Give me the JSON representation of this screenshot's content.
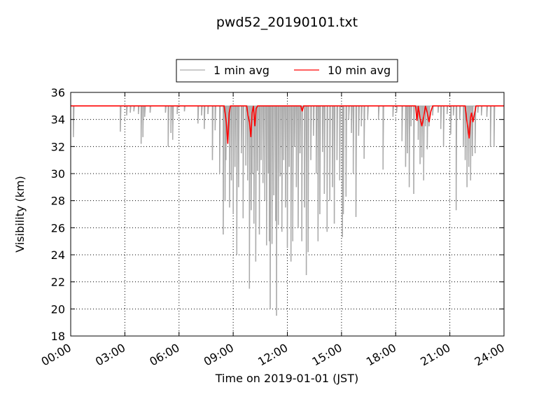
{
  "chart_data": {
    "type": "line",
    "title": "pwd52_20190101.txt",
    "xlabel": "Time on 2019-01-01 (JST)",
    "ylabel": "Visibility (km)",
    "xlim": [
      0,
      24
    ],
    "ylim": [
      18,
      36
    ],
    "x_tick_values": [
      0,
      3,
      6,
      9,
      12,
      15,
      18,
      21,
      24
    ],
    "x_tick_labels": [
      "00:00",
      "03:00",
      "06:00",
      "09:00",
      "12:00",
      "15:00",
      "18:00",
      "21:00",
      "24:00"
    ],
    "y_ticks": [
      18,
      20,
      22,
      24,
      26,
      28,
      30,
      32,
      34,
      36
    ],
    "grid": true,
    "legend_position": "top-center-outside",
    "series": [
      {
        "name": "1 min avg",
        "color": "#aaaaaa",
        "baseline": 35.0,
        "dips": [
          [
            0.15,
            32.7
          ],
          [
            2.75,
            33.1
          ],
          [
            3.1,
            34.3
          ],
          [
            3.3,
            34.5
          ],
          [
            3.5,
            34.6
          ],
          [
            3.75,
            34.4
          ],
          [
            3.9,
            32.2
          ],
          [
            4.0,
            32.7
          ],
          [
            4.1,
            34.2
          ],
          [
            4.4,
            34.5
          ],
          [
            5.25,
            34.5
          ],
          [
            5.4,
            32.0
          ],
          [
            5.55,
            33.0
          ],
          [
            5.65,
            32.5
          ],
          [
            5.9,
            34.4
          ],
          [
            6.3,
            34.6
          ],
          [
            7.05,
            33.7
          ],
          [
            7.25,
            34.3
          ],
          [
            7.4,
            33.3
          ],
          [
            7.6,
            34.4
          ],
          [
            7.85,
            31.0
          ],
          [
            8.0,
            33.2
          ],
          [
            8.25,
            30.0
          ],
          [
            8.45,
            25.5
          ],
          [
            8.55,
            28.0
          ],
          [
            8.6,
            31.0
          ],
          [
            8.7,
            32.5
          ],
          [
            8.8,
            27.5
          ],
          [
            8.9,
            29.5
          ],
          [
            9.0,
            27.0
          ],
          [
            9.1,
            30.5
          ],
          [
            9.2,
            24.0
          ],
          [
            9.3,
            29.0
          ],
          [
            9.45,
            31.5
          ],
          [
            9.55,
            26.7
          ],
          [
            9.7,
            30.6
          ],
          [
            9.8,
            29.5
          ],
          [
            9.9,
            21.5
          ],
          [
            10.0,
            27.3
          ],
          [
            10.05,
            30.0
          ],
          [
            10.15,
            26.3
          ],
          [
            10.25,
            23.5
          ],
          [
            10.35,
            30.2
          ],
          [
            10.45,
            25.5
          ],
          [
            10.55,
            31.0
          ],
          [
            10.65,
            29.3
          ],
          [
            10.75,
            28.0
          ],
          [
            10.85,
            24.7
          ],
          [
            10.95,
            30.0
          ],
          [
            11.0,
            25.0
          ],
          [
            11.05,
            20.0
          ],
          [
            11.15,
            24.8
          ],
          [
            11.25,
            28.4
          ],
          [
            11.35,
            26.5
          ],
          [
            11.4,
            19.5
          ],
          [
            11.5,
            26.2
          ],
          [
            11.6,
            29.8
          ],
          [
            11.7,
            25.7
          ],
          [
            11.8,
            31.0
          ],
          [
            11.9,
            27.5
          ],
          [
            12.0,
            24.5
          ],
          [
            12.1,
            30.5
          ],
          [
            12.2,
            23.5
          ],
          [
            12.3,
            25.0
          ],
          [
            12.4,
            32.0
          ],
          [
            12.5,
            29.0
          ],
          [
            12.6,
            26.0
          ],
          [
            12.7,
            31.5
          ],
          [
            12.8,
            25.0
          ],
          [
            12.95,
            27.5
          ],
          [
            13.05,
            22.5
          ],
          [
            13.15,
            24.2
          ],
          [
            13.3,
            31.0
          ],
          [
            13.45,
            32.8
          ],
          [
            13.6,
            30.0
          ],
          [
            13.7,
            25.0
          ],
          [
            13.8,
            27.0
          ],
          [
            13.95,
            31.6
          ],
          [
            14.05,
            28.5
          ],
          [
            14.2,
            25.7
          ],
          [
            14.35,
            28.0
          ],
          [
            14.5,
            29.0
          ],
          [
            14.6,
            26.3
          ],
          [
            14.75,
            31.0
          ],
          [
            14.9,
            29.5
          ],
          [
            15.05,
            25.3
          ],
          [
            15.1,
            27.0
          ],
          [
            15.25,
            28.3
          ],
          [
            15.4,
            34.0
          ],
          [
            15.55,
            33.0
          ],
          [
            15.65,
            30.0
          ],
          [
            15.8,
            26.8
          ],
          [
            15.95,
            32.8
          ],
          [
            16.1,
            33.5
          ],
          [
            16.25,
            31.1
          ],
          [
            16.45,
            34.0
          ],
          [
            17.05,
            34.0
          ],
          [
            17.3,
            30.3
          ],
          [
            17.85,
            34.2
          ],
          [
            18.05,
            34.5
          ],
          [
            18.35,
            32.4
          ],
          [
            18.55,
            30.5
          ],
          [
            18.65,
            31.5
          ],
          [
            18.75,
            29.0
          ],
          [
            18.85,
            33.5
          ],
          [
            19.0,
            28.5
          ],
          [
            19.15,
            34.0
          ],
          [
            19.25,
            32.5
          ],
          [
            19.35,
            30.7
          ],
          [
            19.45,
            31.2
          ],
          [
            19.55,
            29.5
          ],
          [
            19.65,
            33.5
          ],
          [
            19.75,
            31.8
          ],
          [
            19.85,
            33.5
          ],
          [
            20.05,
            34.3
          ],
          [
            20.35,
            34.5
          ],
          [
            20.5,
            33.3
          ],
          [
            20.65,
            32.0
          ],
          [
            20.85,
            34.4
          ],
          [
            21.05,
            32.9
          ],
          [
            21.2,
            34.3
          ],
          [
            21.35,
            27.3
          ],
          [
            21.55,
            34.0
          ],
          [
            21.75,
            32.0
          ],
          [
            21.85,
            31.0
          ],
          [
            21.95,
            29.0
          ],
          [
            22.05,
            30.5
          ],
          [
            22.15,
            29.5
          ],
          [
            22.25,
            31.3
          ],
          [
            22.4,
            31.5
          ],
          [
            22.55,
            34.5
          ],
          [
            22.75,
            34.3
          ],
          [
            23.05,
            34.2
          ],
          [
            23.25,
            32.0
          ],
          [
            23.45,
            32.0
          ]
        ]
      },
      {
        "name": "10 min avg",
        "color": "#ff0000",
        "points": [
          [
            0,
            35.0
          ],
          [
            8.5,
            35.0
          ],
          [
            8.62,
            33.8
          ],
          [
            8.7,
            32.2
          ],
          [
            8.78,
            34.5
          ],
          [
            8.85,
            35.0
          ],
          [
            9.75,
            35.0
          ],
          [
            9.82,
            34.3
          ],
          [
            9.9,
            33.8
          ],
          [
            9.98,
            32.7
          ],
          [
            10.05,
            34.5
          ],
          [
            10.12,
            35.0
          ],
          [
            10.2,
            33.5
          ],
          [
            10.27,
            34.8
          ],
          [
            10.35,
            35.0
          ],
          [
            12.75,
            35.0
          ],
          [
            12.82,
            34.6
          ],
          [
            12.9,
            35.0
          ],
          [
            19.1,
            35.0
          ],
          [
            19.18,
            33.9
          ],
          [
            19.25,
            35.0
          ],
          [
            19.35,
            34.1
          ],
          [
            19.45,
            33.5
          ],
          [
            19.55,
            34.2
          ],
          [
            19.65,
            35.0
          ],
          [
            19.75,
            34.5
          ],
          [
            19.85,
            33.8
          ],
          [
            19.95,
            34.6
          ],
          [
            20.05,
            35.0
          ],
          [
            21.85,
            35.0
          ],
          [
            21.93,
            34.0
          ],
          [
            22.0,
            33.4
          ],
          [
            22.07,
            32.6
          ],
          [
            22.15,
            34.2
          ],
          [
            22.2,
            34.5
          ],
          [
            22.28,
            33.8
          ],
          [
            22.35,
            34.3
          ],
          [
            22.45,
            35.0
          ],
          [
            24,
            35.0
          ]
        ]
      }
    ]
  }
}
